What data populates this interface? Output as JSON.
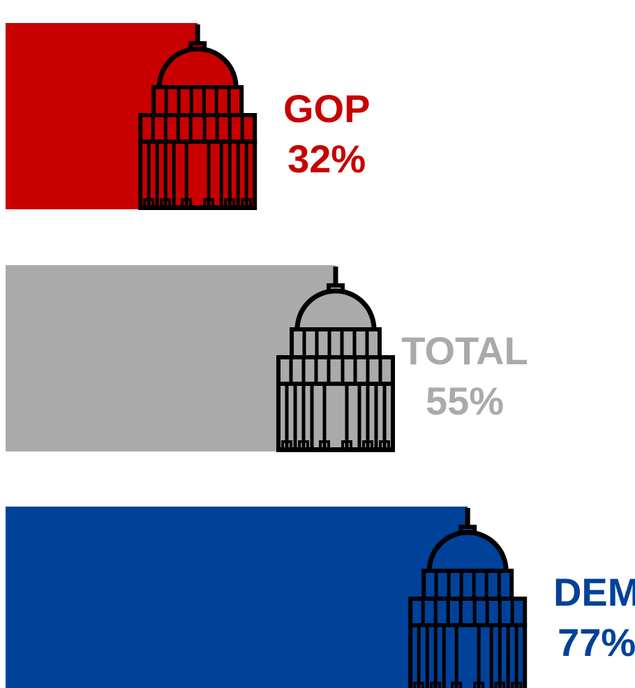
{
  "chart_data": {
    "type": "bar",
    "categories": [
      "GOP",
      "TOTAL",
      "DEM"
    ],
    "values": [
      32,
      55,
      77
    ],
    "value_suffix": "%",
    "ylim": [
      0,
      100
    ],
    "colors": [
      "#c80000",
      "#aaaaaa",
      "#00419a"
    ],
    "icon": "capitol-icon",
    "value_labels": [
      "32%",
      "55%",
      "77%"
    ]
  }
}
